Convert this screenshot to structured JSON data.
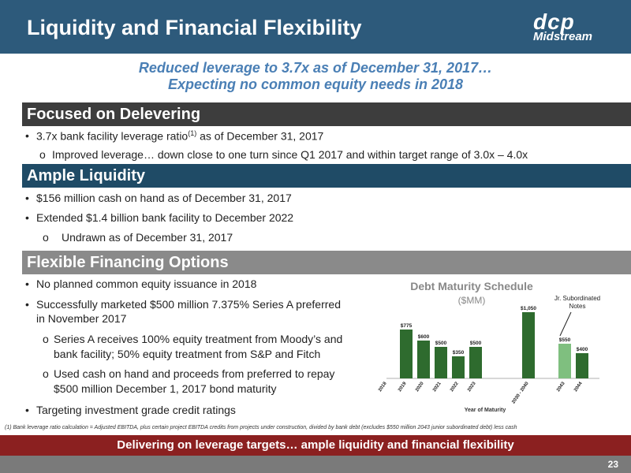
{
  "header": {
    "title": "Liquidity and Financial Flexibility",
    "logo_mark": "dcp",
    "logo_sub": "Midstream"
  },
  "subtitle": {
    "line1": "Reduced leverage to 3.7x as of December 31, 2017…",
    "line2": "Expecting no common equity needs in 2018"
  },
  "sections": {
    "delevering": {
      "title": "Focused on Delevering",
      "b1_pre": "3.7x bank facility leverage ratio",
      "b1_sup": "(1)",
      "b1_post": " as of December 31, 2017",
      "sub1": "Improved leverage… down close to one turn since Q1 2017 and within target range of 3.0x – 4.0x"
    },
    "liquidity": {
      "title": "Ample Liquidity",
      "b1": "$156 million cash on hand as of December 31, 2017",
      "b2": "Extended $1.4 billion bank facility to December 2022",
      "sub1": "Undrawn as of December 31, 2017"
    },
    "financing": {
      "title": "Flexible Financing Options",
      "b1": "No planned common equity issuance in 2018",
      "b2_l1": "Successfully marketed $500 million 7.375% Series A preferred",
      "b2_l2": "in November 2017",
      "s1_l1": "Series A receives 100% equity treatment from Moody’s and",
      "s1_l2": "bank facility; 50% equity treatment from S&P and Fitch",
      "s2_l1": "Used cash on hand and proceeds from preferred to repay",
      "s2_l2": "$500 million December 1, 2017 bond maturity",
      "b3": "Targeting investment grade credit ratings"
    }
  },
  "chart_data": {
    "type": "bar",
    "title": "Debt Maturity Schedule",
    "subtitle": "($MM)",
    "xlabel": "Year of Maturity",
    "ylabel": "",
    "categories": [
      "2018",
      "2019",
      "2020",
      "2021",
      "2022",
      "2023",
      "2030 - 2040",
      "2043",
      "2044"
    ],
    "values": [
      0,
      775,
      600,
      500,
      350,
      500,
      1050,
      550,
      400
    ],
    "labels": [
      "",
      "$775",
      "$600",
      "$500",
      "$350",
      "$500",
      "$1,050",
      "$550",
      "$400"
    ],
    "ylim": [
      0,
      1100
    ],
    "annotation": "Jr. Subordinated Notes",
    "colors": {
      "bar": "#2e6b2e",
      "highlight": "#7fbf7f"
    }
  },
  "footnote": "(1)  Bank leverage ratio calculation = Adjusted EBITDA, plus certain project EBITDA credits from projects under construction, divided by bank debt (excludes $550 million 2043 junior subordinated debt) less cash",
  "footer": {
    "tagline": "Delivering on leverage targets… ample liquidity and financial flexibility",
    "page": "23"
  }
}
